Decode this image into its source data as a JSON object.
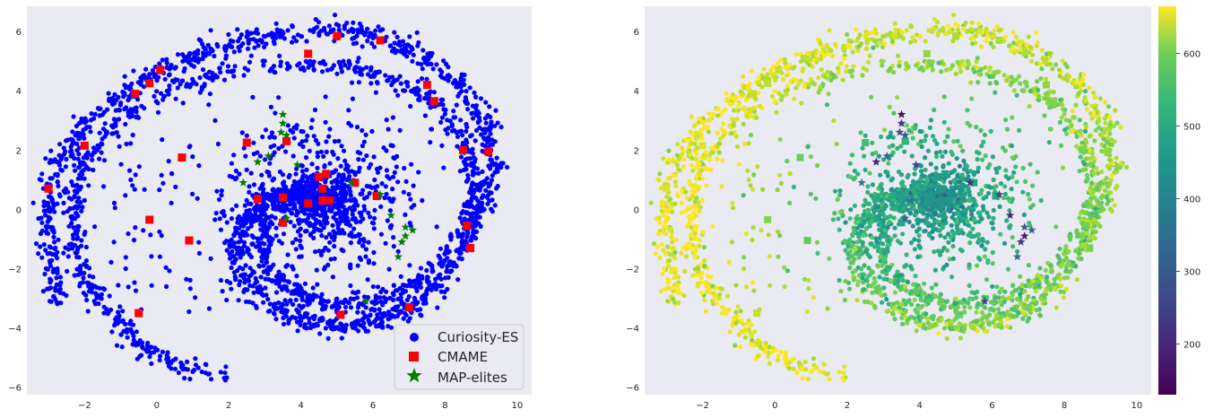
{
  "chart_data": [
    {
      "type": "scatter",
      "title": "",
      "xlabel": "",
      "ylabel": "",
      "xlim": [
        -3.6,
        10.4
      ],
      "ylim": [
        -6.25,
        6.85
      ],
      "x_ticks": [
        -2,
        0,
        2,
        4,
        6,
        8,
        10
      ],
      "y_ticks": [
        -6,
        -4,
        -2,
        0,
        2,
        4,
        6
      ],
      "x_tick_labels": [
        "−2",
        "0",
        "2",
        "4",
        "6",
        "8",
        "10"
      ],
      "y_tick_labels": [
        "−6",
        "−4",
        "−2",
        "0",
        "2",
        "4",
        "6"
      ],
      "grid": false,
      "legend_position": "lower-right",
      "series": [
        {
          "name": "Curiosity-ES",
          "marker": "circle",
          "color": "#0000ff",
          "structure": "two-armed spiral (sampled along arms, plus dense core near (4.5, 0.3) and sparse scatter)",
          "outer_arm_points": [
            [
              -2.8,
              -3.2
            ],
            [
              -2.9,
              -1.8
            ],
            [
              -3.0,
              -0.2
            ],
            [
              -2.8,
              1.4
            ],
            [
              -2.2,
              2.6
            ],
            [
              -1.2,
              3.6
            ],
            [
              0.0,
              4.6
            ],
            [
              1.4,
              5.3
            ],
            [
              2.8,
              5.8
            ],
            [
              4.4,
              6.1
            ],
            [
              6.0,
              5.9
            ],
            [
              7.3,
              5.2
            ],
            [
              8.4,
              4.2
            ],
            [
              9.1,
              2.9
            ],
            [
              9.3,
              1.5
            ],
            [
              9.0,
              0.0
            ],
            [
              8.4,
              -1.5
            ],
            [
              7.6,
              -2.8
            ],
            [
              6.6,
              -3.6
            ],
            [
              5.4,
              -3.9
            ],
            [
              4.2,
              -3.8
            ],
            [
              3.1,
              -3.2
            ],
            [
              2.4,
              -2.3
            ],
            [
              2.2,
              -1.2
            ],
            [
              2.5,
              -0.2
            ],
            [
              3.2,
              0.4
            ],
            [
              4.1,
              0.6
            ],
            [
              4.7,
              0.3
            ]
          ],
          "inner_arm_points": [
            [
              2.0,
              -5.7
            ],
            [
              0.6,
              -5.3
            ],
            [
              -0.5,
              -4.6
            ],
            [
              -1.2,
              -3.6
            ],
            [
              -2.0,
              -2.4
            ],
            [
              -2.2,
              -1.2
            ],
            [
              -2.3,
              0.2
            ],
            [
              -2.0,
              1.6
            ],
            [
              -1.2,
              2.9
            ],
            [
              0.2,
              3.9
            ],
            [
              1.8,
              4.6
            ],
            [
              3.5,
              4.9
            ],
            [
              5.2,
              4.8
            ],
            [
              6.8,
              4.3
            ],
            [
              7.9,
              3.4
            ],
            [
              8.6,
              2.2
            ],
            [
              8.8,
              0.9
            ],
            [
              8.6,
              -0.4
            ],
            [
              8.0,
              -1.6
            ],
            [
              7.1,
              -2.6
            ],
            [
              6.0,
              -3.1
            ],
            [
              4.8,
              -3.2
            ],
            [
              3.8,
              -2.8
            ],
            [
              3.1,
              -2.0
            ],
            [
              2.9,
              -1.0
            ],
            [
              3.2,
              -0.1
            ],
            [
              3.8,
              0.6
            ],
            [
              4.5,
              0.9
            ]
          ],
          "core_center": [
            4.5,
            0.3
          ]
        },
        {
          "name": "CMAME",
          "marker": "square",
          "color": "#ff0000",
          "points": [
            [
              -3.0,
              0.7
            ],
            [
              -2.0,
              2.15
            ],
            [
              -0.6,
              3.9
            ],
            [
              -0.2,
              4.25
            ],
            [
              0.1,
              4.7
            ],
            [
              4.2,
              5.25
            ],
            [
              5.0,
              5.85
            ],
            [
              6.2,
              5.7
            ],
            [
              7.5,
              4.2
            ],
            [
              7.7,
              3.65
            ],
            [
              8.5,
              2.0
            ],
            [
              9.2,
              1.95
            ],
            [
              8.6,
              -0.55
            ],
            [
              8.7,
              -1.3
            ],
            [
              7.0,
              -3.3
            ],
            [
              5.1,
              -3.55
            ],
            [
              -0.5,
              -3.5
            ],
            [
              -0.2,
              -0.35
            ],
            [
              0.9,
              -1.05
            ],
            [
              0.7,
              1.75
            ],
            [
              2.5,
              2.25
            ],
            [
              3.6,
              2.3
            ],
            [
              2.8,
              0.35
            ],
            [
              3.5,
              0.4
            ],
            [
              3.5,
              -0.45
            ],
            [
              4.2,
              0.2
            ],
            [
              4.5,
              1.1
            ],
            [
              4.6,
              0.3
            ],
            [
              4.6,
              0.7
            ],
            [
              4.7,
              1.2
            ],
            [
              4.8,
              0.3
            ],
            [
              5.5,
              0.9
            ],
            [
              6.1,
              0.45
            ]
          ]
        },
        {
          "name": "MAP-elites",
          "marker": "star",
          "color": "#008000",
          "points": [
            [
              3.5,
              3.2
            ],
            [
              3.5,
              2.9
            ],
            [
              3.45,
              2.6
            ],
            [
              3.1,
              1.8
            ],
            [
              2.8,
              1.6
            ],
            [
              3.9,
              1.5
            ],
            [
              3.6,
              2.5
            ],
            [
              2.4,
              0.9
            ],
            [
              5.4,
              0.9
            ],
            [
              6.2,
              0.5
            ],
            [
              7.1,
              -0.7
            ],
            [
              6.9,
              -0.9
            ],
            [
              6.8,
              -1.1
            ],
            [
              6.9,
              -0.6
            ],
            [
              6.7,
              -1.6
            ],
            [
              6.5,
              -0.2
            ],
            [
              5.8,
              -3.1
            ],
            [
              3.6,
              -0.3
            ]
          ]
        }
      ]
    },
    {
      "type": "scatter",
      "title": "",
      "xlabel": "",
      "ylabel": "",
      "xlim": [
        -3.6,
        10.4
      ],
      "ylim": [
        -6.25,
        6.85
      ],
      "x_ticks": [
        -2,
        0,
        2,
        4,
        6,
        8,
        10
      ],
      "y_ticks": [
        -6,
        -4,
        -2,
        0,
        2,
        4,
        6
      ],
      "x_tick_labels": [
        "−2",
        "0",
        "2",
        "4",
        "6",
        "8",
        "10"
      ],
      "y_tick_labels": [
        "−6",
        "−4",
        "−2",
        "0",
        "2",
        "4",
        "6"
      ],
      "grid": false,
      "colormap": "viridis",
      "color_value_range": [
        130,
        665
      ],
      "colorbar": {
        "ticks": [
          200,
          300,
          400,
          500,
          600
        ],
        "tick_labels": [
          "200",
          "300",
          "400",
          "500",
          "600"
        ],
        "position": "right"
      },
      "description": "Same points as left panel colored by fitness: outer spiral arms ~550-660 (yellow-green), inner core ~380-450 (teal), MAP-elites stars ~150-350 (dark purple)"
    }
  ]
}
